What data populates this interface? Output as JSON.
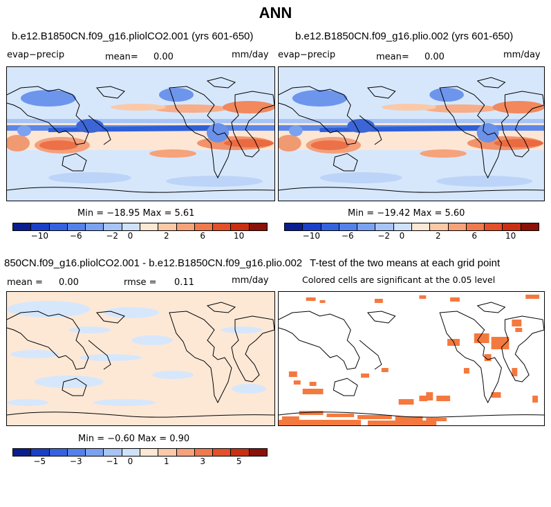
{
  "title": "ANN",
  "panels": [
    {
      "case": "b.e12.B1850CN.f09_g16.pliolCO2.001 (yrs 601-650)",
      "variable": "evap−precip",
      "mean_label": "mean=",
      "mean_value": "0.00",
      "units": "mm/day",
      "min_max": "Min = −18.95 Max =   5.61",
      "colorbar_ticks": [
        "−10",
        "−6",
        "−2",
        "0",
        "2",
        "6",
        "10"
      ]
    },
    {
      "case": "b.e12.B1850CN.f09_g16.plio.002 (yrs 601-650)",
      "variable": "evap−precip",
      "mean_label": "mean=",
      "mean_value": "0.00",
      "units": "mm/day",
      "min_max": "Min = −19.42 Max =   5.60",
      "colorbar_ticks": [
        "−10",
        "−6",
        "−2",
        "0",
        "2",
        "6",
        "10"
      ]
    },
    {
      "case": "850CN.f09_g16.pliolCO2.001 - b.e12.B1850CN.f09_g16.plio.002",
      "mean_label": "mean =",
      "mean_value": "0.00",
      "rmse_label": "rmse =",
      "rmse_value": "0.11",
      "units": "mm/day",
      "min_max": "Min = −0.60 Max =   0.90",
      "colorbar_ticks": [
        "−5",
        "−3",
        "−1",
        "0",
        "1",
        "3",
        "5"
      ]
    },
    {
      "case": "T-test of the two means at each grid point",
      "note": "Colored cells are significant at the 0.05 level"
    }
  ],
  "colors": {
    "colorbar": [
      "#0a1f8f",
      "#1a40c8",
      "#3563e0",
      "#5582ea",
      "#7ba2f0",
      "#a8c4f5",
      "#cfe2fb",
      "#fde8d6",
      "#fbc9a8",
      "#f6a27a",
      "#ef7a4f",
      "#e3502a",
      "#c92f12",
      "#8a1208"
    ],
    "significant": "#f4793f"
  }
}
